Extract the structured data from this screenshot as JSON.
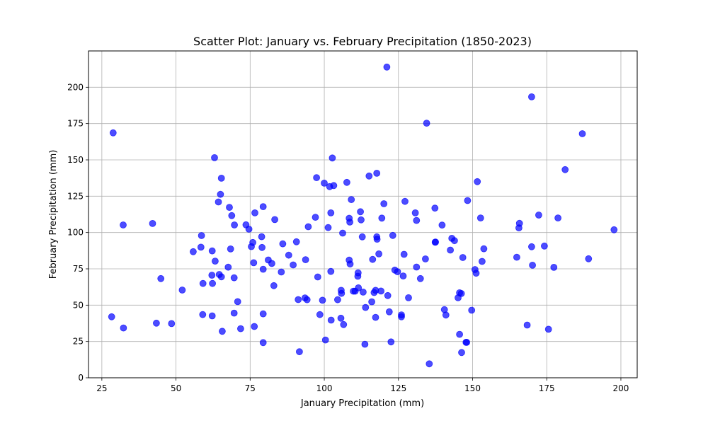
{
  "chart_data": {
    "type": "scatter",
    "title": "Scatter Plot: January vs. February Precipitation (1850-2023)",
    "xlabel": "January Precipitation (mm)",
    "ylabel": "February Precipitation (mm)",
    "xlim": [
      20.5,
      205.5
    ],
    "ylim": [
      0,
      225
    ],
    "xticks": [
      25,
      50,
      75,
      100,
      125,
      150,
      175,
      200
    ],
    "yticks": [
      0,
      25,
      50,
      75,
      100,
      125,
      150,
      175,
      200
    ],
    "grid": true,
    "marker_color": "#0000ff",
    "marker_opacity": 0.7,
    "points": [
      [
        28.8,
        168.6
      ],
      [
        32.2,
        105.2
      ],
      [
        42.1,
        106.2
      ],
      [
        28.3,
        42.0
      ],
      [
        32.3,
        34.3
      ],
      [
        43.4,
        37.6
      ],
      [
        44.9,
        68.3
      ],
      [
        48.5,
        37.3
      ],
      [
        52.1,
        60.4
      ],
      [
        55.8,
        86.8
      ],
      [
        58.6,
        97.9
      ],
      [
        58.4,
        89.9
      ],
      [
        59.0,
        43.5
      ],
      [
        59.1,
        64.9
      ],
      [
        62.1,
        70.6
      ],
      [
        62.2,
        87.3
      ],
      [
        62.3,
        64.9
      ],
      [
        62.2,
        42.6
      ],
      [
        63.0,
        151.5
      ],
      [
        63.2,
        80.3
      ],
      [
        64.3,
        121.0
      ],
      [
        64.6,
        71.1
      ],
      [
        65.0,
        126.3
      ],
      [
        65.3,
        137.4
      ],
      [
        65.3,
        69.5
      ],
      [
        65.6,
        32.0
      ],
      [
        67.6,
        76.1
      ],
      [
        68.0,
        117.3
      ],
      [
        68.4,
        88.7
      ],
      [
        68.8,
        111.6
      ],
      [
        69.7,
        105.2
      ],
      [
        69.6,
        68.8
      ],
      [
        69.6,
        44.5
      ],
      [
        70.8,
        52.4
      ],
      [
        71.8,
        33.8
      ],
      [
        73.6,
        105.3
      ],
      [
        74.6,
        102.3
      ],
      [
        75.4,
        90.3
      ],
      [
        75.9,
        93.1
      ],
      [
        76.2,
        79.2
      ],
      [
        76.6,
        113.5
      ],
      [
        76.4,
        35.3
      ],
      [
        78.9,
        97.1
      ],
      [
        79.0,
        89.7
      ],
      [
        79.4,
        117.8
      ],
      [
        79.4,
        74.7
      ],
      [
        79.4,
        44.0
      ],
      [
        79.4,
        24.2
      ],
      [
        81.1,
        81.1
      ],
      [
        82.3,
        78.7
      ],
      [
        83.0,
        63.4
      ],
      [
        83.3,
        108.9
      ],
      [
        85.5,
        72.8
      ],
      [
        86.0,
        92.2
      ],
      [
        88.0,
        84.4
      ],
      [
        89.5,
        77.7
      ],
      [
        90.6,
        93.6
      ],
      [
        91.2,
        53.8
      ],
      [
        91.6,
        17.9
      ],
      [
        93.5,
        55.0
      ],
      [
        93.7,
        81.3
      ],
      [
        94.2,
        53.7
      ],
      [
        94.6,
        104.0
      ],
      [
        97.0,
        110.5
      ],
      [
        97.4,
        137.8
      ],
      [
        97.8,
        69.4
      ],
      [
        98.5,
        43.5
      ],
      [
        99.4,
        53.4
      ],
      [
        100.0,
        134.0
      ],
      [
        100.4,
        26.0
      ],
      [
        101.3,
        103.4
      ],
      [
        101.8,
        131.6
      ],
      [
        102.2,
        113.5
      ],
      [
        102.2,
        73.2
      ],
      [
        102.3,
        39.7
      ],
      [
        102.7,
        151.3
      ],
      [
        103.2,
        132.3
      ],
      [
        104.5,
        53.7
      ],
      [
        105.7,
        60.2
      ],
      [
        105.8,
        58.1
      ],
      [
        105.6,
        41.0
      ],
      [
        106.2,
        99.6
      ],
      [
        106.5,
        36.6
      ],
      [
        107.6,
        134.5
      ],
      [
        108.4,
        109.8
      ],
      [
        108.6,
        107.2
      ],
      [
        108.4,
        81.0
      ],
      [
        108.7,
        78.3
      ],
      [
        109.1,
        122.7
      ],
      [
        109.8,
        59.6
      ],
      [
        110.4,
        59.6
      ],
      [
        111.3,
        69.9
      ],
      [
        111.4,
        72.2
      ],
      [
        111.5,
        61.9
      ],
      [
        112.2,
        114.3
      ],
      [
        112.4,
        108.7
      ],
      [
        112.8,
        97.0
      ],
      [
        113.1,
        59.0
      ],
      [
        113.7,
        23.1
      ],
      [
        113.9,
        48.4
      ],
      [
        115.1,
        138.9
      ],
      [
        116.0,
        52.3
      ],
      [
        116.3,
        81.5
      ],
      [
        116.8,
        58.7
      ],
      [
        117.3,
        60.2
      ],
      [
        117.3,
        41.6
      ],
      [
        117.7,
        140.8
      ],
      [
        117.7,
        97.0
      ],
      [
        117.8,
        95.4
      ],
      [
        118.4,
        85.3
      ],
      [
        119.1,
        59.7
      ],
      [
        119.4,
        109.9
      ],
      [
        120.1,
        119.8
      ],
      [
        121.1,
        213.9
      ],
      [
        121.4,
        56.6
      ],
      [
        121.9,
        45.4
      ],
      [
        122.5,
        24.7
      ],
      [
        123.1,
        98.0
      ],
      [
        123.8,
        74.1
      ],
      [
        124.7,
        73.0
      ],
      [
        126.0,
        43.3
      ],
      [
        126.0,
        42.0
      ],
      [
        126.6,
        70.1
      ],
      [
        126.9,
        85.0
      ],
      [
        127.2,
        121.4
      ],
      [
        128.4,
        55.1
      ],
      [
        130.7,
        113.5
      ],
      [
        131.1,
        108.3
      ],
      [
        131.1,
        76.2
      ],
      [
        132.4,
        68.3
      ],
      [
        134.1,
        81.8
      ],
      [
        134.5,
        175.3
      ],
      [
        135.4,
        9.6
      ],
      [
        137.4,
        93.3
      ],
      [
        137.5,
        93.4
      ],
      [
        137.3,
        116.8
      ],
      [
        139.7,
        105.1
      ],
      [
        140.5,
        46.9
      ],
      [
        141.0,
        43.2
      ],
      [
        142.5,
        87.9
      ],
      [
        143.0,
        96.0
      ],
      [
        143.9,
        94.4
      ],
      [
        145.1,
        55.1
      ],
      [
        145.6,
        58.5
      ],
      [
        146.2,
        58.0
      ],
      [
        145.6,
        29.9
      ],
      [
        146.3,
        17.4
      ],
      [
        146.7,
        82.8
      ],
      [
        147.8,
        24.4
      ],
      [
        148.0,
        24.4
      ],
      [
        148.3,
        122.0
      ],
      [
        149.7,
        46.5
      ],
      [
        150.8,
        74.5
      ],
      [
        151.2,
        72.0
      ],
      [
        151.6,
        135.0
      ],
      [
        152.7,
        110.0
      ],
      [
        153.2,
        80.1
      ],
      [
        153.8,
        88.8
      ],
      [
        164.9,
        83.0
      ],
      [
        165.6,
        103.2
      ],
      [
        165.8,
        106.3
      ],
      [
        168.4,
        36.3
      ],
      [
        169.9,
        193.4
      ],
      [
        169.9,
        90.2
      ],
      [
        170.2,
        77.5
      ],
      [
        172.3,
        112.0
      ],
      [
        174.2,
        90.7
      ],
      [
        175.6,
        33.4
      ],
      [
        177.4,
        76.0
      ],
      [
        178.8,
        110.0
      ],
      [
        187.0,
        168.0
      ],
      [
        181.2,
        143.3
      ],
      [
        189.1,
        81.9
      ],
      [
        197.7,
        101.9
      ]
    ]
  }
}
